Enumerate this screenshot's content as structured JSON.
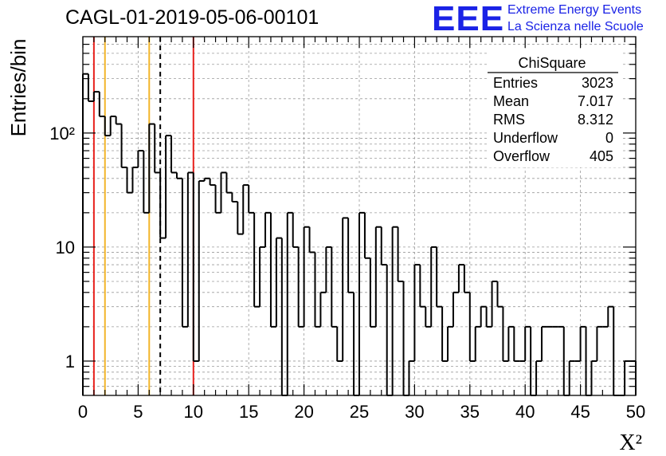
{
  "title": "CAGL-01-2019-05-06-00101",
  "logo": {
    "mark": "EEE",
    "line1": "Extreme Energy Events",
    "line2": "La Scienza nelle Scuole",
    "color": "#1a22e6"
  },
  "stats_box": {
    "title": "ChiSquare",
    "rows": [
      {
        "label": "Entries",
        "value": "3023"
      },
      {
        "label": "Mean",
        "value": "7.017"
      },
      {
        "label": "RMS",
        "value": "8.312"
      },
      {
        "label": "Underflow",
        "value": "0"
      },
      {
        "label": "Overflow",
        "value": "405"
      }
    ]
  },
  "chart_data": {
    "type": "bar",
    "histogram": "step",
    "title": "CAGL-01-2019-05-06-00101",
    "xlabel": "X²",
    "ylabel": "Entries/bin",
    "xlim": [
      0,
      50
    ],
    "ylim": [
      0.5,
      700
    ],
    "yscale": "log",
    "grid": true,
    "bin_width": 0.5,
    "x_ticks": [
      "0",
      "5",
      "10",
      "15",
      "20",
      "25",
      "30",
      "35",
      "40",
      "45",
      "50"
    ],
    "y_ticks": [
      {
        "value": 1,
        "label": "1"
      },
      {
        "value": 10,
        "label": "10"
      },
      {
        "value": 100,
        "label": "10²"
      }
    ],
    "values": [
      330,
      190,
      230,
      140,
      95,
      140,
      120,
      50,
      30,
      50,
      70,
      20,
      120,
      45,
      12,
      95,
      45,
      40,
      2,
      45,
      1,
      38,
      40,
      35,
      20,
      45,
      30,
      25,
      13,
      35,
      20,
      3,
      10,
      20,
      2,
      12,
      0.5,
      20,
      10,
      2,
      15,
      9,
      2,
      4,
      10,
      2,
      1,
      18,
      4,
      0.5,
      20,
      8,
      2,
      15,
      7,
      0.5,
      15,
      5,
      0.5,
      1,
      7,
      3,
      2,
      10,
      3,
      1,
      2,
      4,
      7,
      4,
      1,
      2,
      3,
      2,
      5,
      3,
      1,
      2,
      1,
      1,
      2,
      0.5,
      1,
      2,
      2,
      2,
      2,
      0.5,
      1,
      1,
      2,
      0.5,
      1,
      2,
      2,
      3,
      0.5,
      0.5,
      1,
      1
    ],
    "vertical_lines": [
      {
        "x": 1,
        "color": "#e8201c",
        "style": "solid"
      },
      {
        "x": 2,
        "color": "#f2b52a",
        "style": "solid"
      },
      {
        "x": 6,
        "color": "#f2b52a",
        "style": "solid"
      },
      {
        "x": 7,
        "color": "#000000",
        "style": "dashed"
      },
      {
        "x": 10,
        "color": "#e8201c",
        "style": "solid"
      }
    ]
  }
}
